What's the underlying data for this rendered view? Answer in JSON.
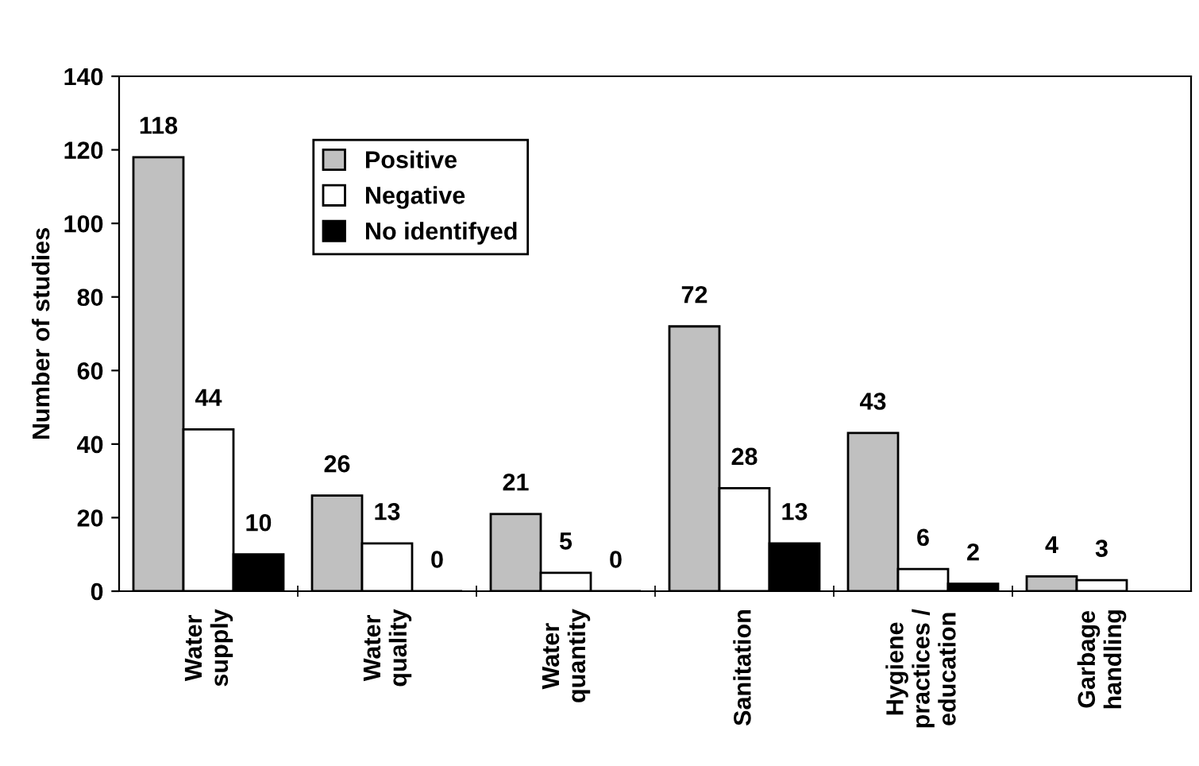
{
  "chart_data": {
    "type": "bar",
    "ylabel": "Number of studies",
    "categories": [
      "Water\nsupply",
      "Water\nquality",
      "Water\nquantity",
      "Sanitation",
      "Hygiene\npractices /\neducation",
      "Garbage\nhandling"
    ],
    "series": [
      {
        "name": "Positive",
        "color": "#c0c0c0",
        "values": [
          118,
          26,
          21,
          72,
          43,
          4
        ]
      },
      {
        "name": "Negative",
        "color": "#ffffff",
        "values": [
          44,
          13,
          5,
          28,
          6,
          3
        ]
      },
      {
        "name": "No identifyed",
        "color": "#000000",
        "values": [
          10,
          0,
          0,
          13,
          2,
          null
        ]
      }
    ],
    "ylim": [
      0,
      140
    ],
    "yticks": [
      0,
      20,
      40,
      60,
      80,
      100,
      120,
      140
    ],
    "data_labels": true,
    "legend": "top left",
    "grid": false
  }
}
